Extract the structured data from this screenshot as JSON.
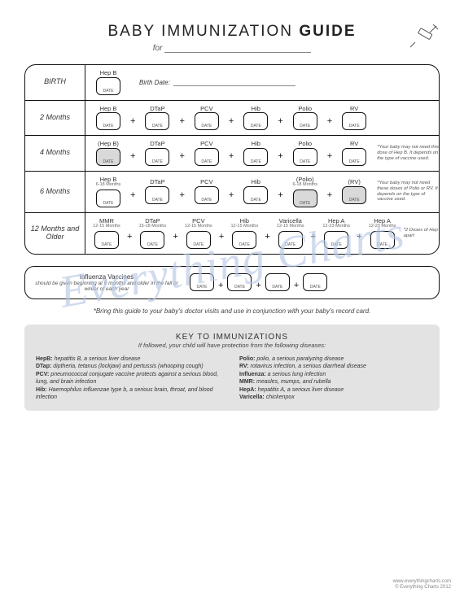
{
  "header": {
    "title_light": "BABY IMMUNIZATION ",
    "title_bold": "GUIDE",
    "for_label": "for"
  },
  "watermark": "Everything Charts",
  "date_label": "DATE",
  "rows": [
    {
      "age": "BIRTH",
      "birthdate_label": "Birth Date:",
      "vaccines": [
        {
          "name": "Hep B",
          "grey": false
        }
      ]
    },
    {
      "age": "2 Months",
      "vaccines": [
        {
          "name": "Hep B"
        },
        {
          "name": "DTaP"
        },
        {
          "name": "PCV"
        },
        {
          "name": "Hib"
        },
        {
          "name": "Polio"
        },
        {
          "name": "RV"
        }
      ]
    },
    {
      "age": "4 Months",
      "vaccines": [
        {
          "name": "(Hep B)",
          "grey": true
        },
        {
          "name": "DTaP"
        },
        {
          "name": "PCV"
        },
        {
          "name": "Hib"
        },
        {
          "name": "Polio"
        },
        {
          "name": "RV"
        }
      ],
      "note": "*Your baby may not need this dose of Hep B. It depends on the type of vaccine used."
    },
    {
      "age": "6 Months",
      "vaccines": [
        {
          "name": "Hep B",
          "sub": "6-18 Months"
        },
        {
          "name": "DTaP"
        },
        {
          "name": "PCV"
        },
        {
          "name": "Hib"
        },
        {
          "name": "(Polio)",
          "sub": "6-18 Months",
          "grey": true
        },
        {
          "name": "(RV)",
          "grey": true
        }
      ],
      "note": "*Your baby may not need these doses of Polio or RV. It depends on the type of vaccine used."
    },
    {
      "age": "12 Months and Older",
      "vaccines": [
        {
          "name": "MMR",
          "sub": "12-15 Months"
        },
        {
          "name": "DTaP",
          "sub": "15-18 Months"
        },
        {
          "name": "PCV",
          "sub": "12-15 Months"
        },
        {
          "name": "Hib",
          "sub": "12-15 Months"
        },
        {
          "name": "Varicella",
          "sub": "12-15 Months"
        },
        {
          "name": "Hep A",
          "sub": "12-23 Months"
        },
        {
          "name": "Hep A",
          "sub": "12-23 Months"
        }
      ],
      "note": "*2 Doses of Hep A, 6 months apart"
    }
  ],
  "flu": {
    "title": "Influenza Vaccines",
    "sub": "should be given beginning at 6 months and older in the fall or winter of each year",
    "doses": 4
  },
  "footnote": "*Bring this guide to your baby's doctor visits and use in conjunction with your baby's record card.",
  "key": {
    "title": "KEY TO IMMUNIZATIONS",
    "sub": "If followed, your child will have protection from the following diseases:",
    "left": [
      {
        "abbr": "HepB:",
        "desc": "hepatitis B, a serious liver disease"
      },
      {
        "abbr": "DTap:",
        "desc": "diptheria, tetanus (lockjaw) and pertussis (whooping cough)"
      },
      {
        "abbr": "PCV:",
        "desc": "pneumococcal conjugate vaccine protects against a serious blood, lung, and brain infection"
      },
      {
        "abbr": "Hib:",
        "desc": "Haemophilus influenzae type b, a serious brain, throat, and blood infection"
      }
    ],
    "right": [
      {
        "abbr": "Polio:",
        "desc": "polio, a serious paralyzing disease"
      },
      {
        "abbr": "RV:",
        "desc": "rotavirus infection, a serious diarrheal disease"
      },
      {
        "abbr": "Influenza:",
        "desc": "a serious lung infection"
      },
      {
        "abbr": "MMR:",
        "desc": "measles, mumps, and rubella"
      },
      {
        "abbr": "HepA:",
        "desc": "hepatitis A, a serious liver disease"
      },
      {
        "abbr": "Varicella:",
        "desc": "chickenpox"
      }
    ]
  },
  "credit": {
    "url": "www.everythingcharts.com",
    "copy": "© Everything Charts 2012"
  },
  "colors": {
    "border": "#111111",
    "grey_box": "#d9d9d9",
    "key_bg": "#e3e3e3",
    "watermark": "#b9c8e6"
  }
}
